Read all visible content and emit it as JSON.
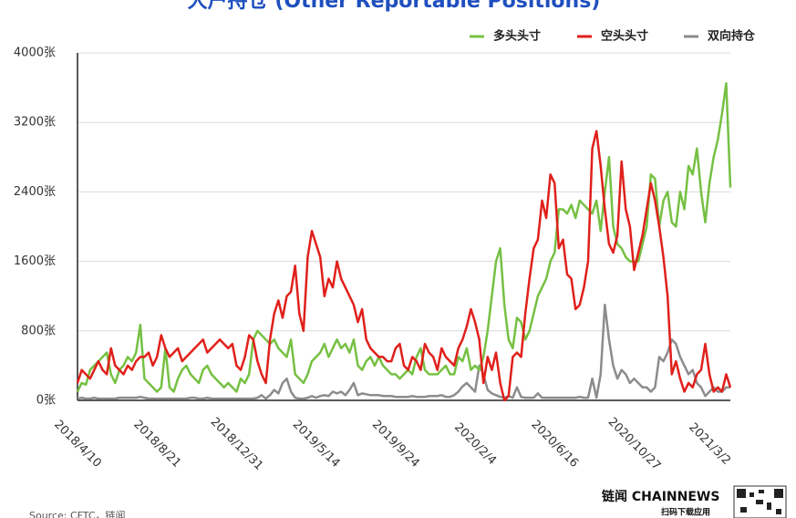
{
  "chart_data": {
    "type": "line",
    "title": "大户持仓 (Other Reportable Positions)",
    "source": "Source: CFTC，链闻",
    "brand": "链闻 CHAINNEWS",
    "brand_sub": "扫码下载应用",
    "categories": [
      "2018/4/10",
      null,
      null,
      null,
      null,
      null,
      null,
      null,
      null,
      null,
      null,
      null,
      null,
      null,
      null,
      null,
      null,
      null,
      null,
      "2018/8/21",
      null,
      null,
      null,
      null,
      null,
      null,
      null,
      null,
      null,
      null,
      null,
      null,
      null,
      null,
      null,
      null,
      null,
      null,
      "2018/12/31",
      null,
      null,
      null,
      null,
      null,
      null,
      null,
      null,
      null,
      null,
      null,
      null,
      null,
      null,
      null,
      null,
      null,
      null,
      "2019/5/14",
      null,
      null,
      null,
      null,
      null,
      null,
      null,
      null,
      null,
      null,
      null,
      null,
      null,
      null,
      null,
      null,
      null,
      null,
      "2019/9/24",
      null,
      null,
      null,
      null,
      null,
      null,
      null,
      null,
      null,
      null,
      null,
      null,
      null,
      null,
      null,
      null,
      null,
      null,
      "2020/2/4",
      null,
      null,
      null,
      null,
      null,
      null,
      null,
      null,
      null,
      null,
      null,
      null,
      null,
      null,
      null,
      null,
      null,
      null,
      "2020/6/16",
      null,
      null,
      null,
      null,
      null,
      null,
      null,
      null,
      null,
      null,
      null,
      null,
      null,
      null,
      null,
      null,
      null,
      null,
      "2020/10/27",
      null,
      null,
      null,
      null,
      null,
      null,
      null,
      null,
      null,
      null,
      null,
      null,
      null,
      null,
      null,
      null,
      null,
      "2021/3/2",
      null,
      null,
      null,
      null,
      null
    ],
    "series": [
      {
        "name": "多头头寸",
        "color": "#76c043",
        "values": [
          100,
          200,
          180,
          350,
          400,
          450,
          500,
          550,
          300,
          200,
          350,
          400,
          500,
          450,
          550,
          870,
          250,
          200,
          150,
          100,
          150,
          600,
          150,
          100,
          250,
          350,
          400,
          300,
          250,
          200,
          350,
          400,
          300,
          250,
          200,
          150,
          200,
          150,
          100,
          250,
          200,
          300,
          700,
          800,
          750,
          700,
          650,
          700,
          600,
          550,
          500,
          700,
          300,
          250,
          200,
          300,
          450,
          500,
          550,
          650,
          500,
          600,
          700,
          600,
          650,
          550,
          700,
          400,
          350,
          450,
          500,
          400,
          500,
          400,
          350,
          300,
          300,
          250,
          300,
          350,
          300,
          500,
          600,
          350,
          300,
          300,
          300,
          350,
          400,
          300,
          300,
          500,
          450,
          600,
          350,
          400,
          350,
          500,
          800,
          1200,
          1600,
          1750,
          1100,
          700,
          600,
          950,
          900,
          700,
          800,
          1000,
          1200,
          1300,
          1400,
          1600,
          1700,
          2200,
          2200,
          2150,
          2250,
          2100,
          2300,
          2250,
          2200,
          2150,
          2300,
          1950,
          2400,
          2800,
          2000,
          1800,
          1750,
          1650,
          1600,
          1600,
          1600,
          1800,
          2000,
          2600,
          2550,
          2000,
          2300,
          2400,
          2050,
          2000,
          2400,
          2200,
          2700,
          2600,
          2900,
          2400,
          2050,
          2500,
          2800,
          3000,
          3300,
          3650,
          2450
        ]
      },
      {
        "name": "空头头寸",
        "color": "#e0201b",
        "values": [
          200,
          350,
          300,
          250,
          350,
          450,
          350,
          300,
          600,
          400,
          350,
          300,
          400,
          350,
          450,
          500,
          500,
          550,
          400,
          500,
          750,
          600,
          500,
          550,
          600,
          450,
          500,
          550,
          600,
          650,
          700,
          550,
          600,
          650,
          700,
          650,
          600,
          650,
          400,
          350,
          500,
          750,
          700,
          450,
          300,
          200,
          700,
          1000,
          1150,
          950,
          1200,
          1250,
          1550,
          1000,
          800,
          1650,
          1950,
          1800,
          1650,
          1200,
          1400,
          1300,
          1600,
          1400,
          1300,
          1200,
          1100,
          900,
          1050,
          700,
          600,
          550,
          500,
          500,
          450,
          450,
          600,
          650,
          400,
          350,
          500,
          450,
          350,
          650,
          550,
          500,
          350,
          600,
          500,
          450,
          400,
          600,
          700,
          850,
          1050,
          900,
          700,
          200,
          500,
          350,
          550,
          200,
          0,
          50,
          500,
          550,
          500,
          1000,
          1400,
          1750,
          1850,
          2300,
          2100,
          2600,
          2500,
          1750,
          1850,
          1450,
          1400,
          1050,
          1100,
          1300,
          1600,
          2900,
          3100,
          2700,
          2200,
          1800,
          1700,
          1900,
          2750,
          2200,
          2000,
          1500,
          1700,
          1900,
          2200,
          2500,
          2300,
          2000,
          1650,
          1200,
          300,
          450,
          250,
          100,
          200,
          150,
          300,
          350,
          650,
          300,
          100,
          150,
          100,
          300,
          150
        ]
      },
      {
        "name": "双向持仓",
        "color": "#8c8c8c",
        "values": [
          20,
          30,
          20,
          20,
          30,
          20,
          20,
          20,
          20,
          20,
          30,
          30,
          30,
          30,
          30,
          40,
          30,
          20,
          20,
          20,
          20,
          20,
          20,
          20,
          20,
          20,
          20,
          30,
          30,
          20,
          20,
          30,
          20,
          20,
          20,
          20,
          20,
          20,
          20,
          20,
          20,
          20,
          20,
          30,
          60,
          20,
          60,
          120,
          80,
          200,
          250,
          100,
          30,
          20,
          20,
          30,
          50,
          30,
          50,
          60,
          50,
          100,
          80,
          100,
          60,
          120,
          200,
          60,
          80,
          70,
          60,
          60,
          60,
          50,
          50,
          50,
          40,
          40,
          40,
          40,
          50,
          40,
          40,
          40,
          50,
          50,
          50,
          60,
          40,
          40,
          60,
          100,
          160,
          200,
          150,
          100,
          400,
          300,
          120,
          80,
          60,
          40,
          30,
          50,
          30,
          150,
          40,
          30,
          30,
          30,
          80,
          30,
          30,
          30,
          30,
          30,
          30,
          30,
          30,
          30,
          40,
          30,
          30,
          250,
          30,
          300,
          1100,
          700,
          400,
          250,
          350,
          300,
          200,
          250,
          200,
          150,
          150,
          100,
          150,
          500,
          450,
          550,
          700,
          650,
          500,
          400,
          300,
          350,
          200,
          150,
          50,
          100,
          150,
          100,
          100,
          150,
          150
        ]
      }
    ],
    "ylim": [
      0,
      4000
    ],
    "yticks": [
      {
        "value": 0,
        "label": "0张"
      },
      {
        "value": 800,
        "label": "800张"
      },
      {
        "value": 1600,
        "label": "1600张"
      },
      {
        "value": 2400,
        "label": "2400张"
      },
      {
        "value": 3200,
        "label": "3200张"
      },
      {
        "value": 4000,
        "label": "4000张"
      }
    ],
    "grid": true,
    "legend": "top-right"
  }
}
